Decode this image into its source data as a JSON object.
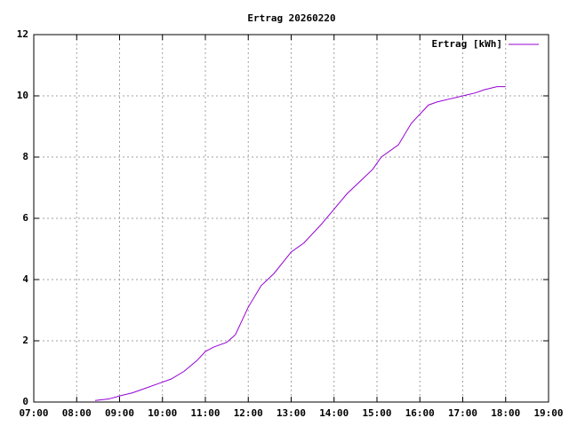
{
  "chart_data": {
    "type": "line",
    "title": "Ertrag 20260220",
    "series": [
      {
        "name": "Ertrag [kWh]",
        "color": "#9400d3",
        "x": [
          8.43,
          8.75,
          9.0,
          9.3,
          9.6,
          9.9,
          10.2,
          10.5,
          10.8,
          11.0,
          11.2,
          11.5,
          11.7,
          12.0,
          12.3,
          12.6,
          13.0,
          13.3,
          13.7,
          14.0,
          14.3,
          14.6,
          14.9,
          15.1,
          15.5,
          15.8,
          16.0,
          16.2,
          16.4,
          16.7,
          17.0,
          17.3,
          17.5,
          17.8,
          18.0
        ],
        "values": [
          0.05,
          0.1,
          0.2,
          0.3,
          0.45,
          0.6,
          0.75,
          1.0,
          1.35,
          1.65,
          1.8,
          1.95,
          2.2,
          3.1,
          3.8,
          4.2,
          4.9,
          5.2,
          5.8,
          6.3,
          6.8,
          7.2,
          7.6,
          8.0,
          8.4,
          9.1,
          9.4,
          9.7,
          9.8,
          9.9,
          10.0,
          10.1,
          10.2,
          10.3,
          10.3
        ]
      }
    ],
    "xlim": [
      7,
      19
    ],
    "xticks": [
      {
        "value": 7,
        "label": "07:00"
      },
      {
        "value": 8,
        "label": "08:00"
      },
      {
        "value": 9,
        "label": "09:00"
      },
      {
        "value": 10,
        "label": "10:00"
      },
      {
        "value": 11,
        "label": "11:00"
      },
      {
        "value": 12,
        "label": "12:00"
      },
      {
        "value": 13,
        "label": "13:00"
      },
      {
        "value": 14,
        "label": "14:00"
      },
      {
        "value": 15,
        "label": "15:00"
      },
      {
        "value": 16,
        "label": "16:00"
      },
      {
        "value": 17,
        "label": "17:00"
      },
      {
        "value": 18,
        "label": "18:00"
      },
      {
        "value": 19,
        "label": "19:00"
      }
    ],
    "ylim": [
      0,
      12
    ],
    "yticks": [
      0,
      2,
      4,
      6,
      8,
      10,
      12
    ],
    "grid": true,
    "legend": "top-right"
  }
}
